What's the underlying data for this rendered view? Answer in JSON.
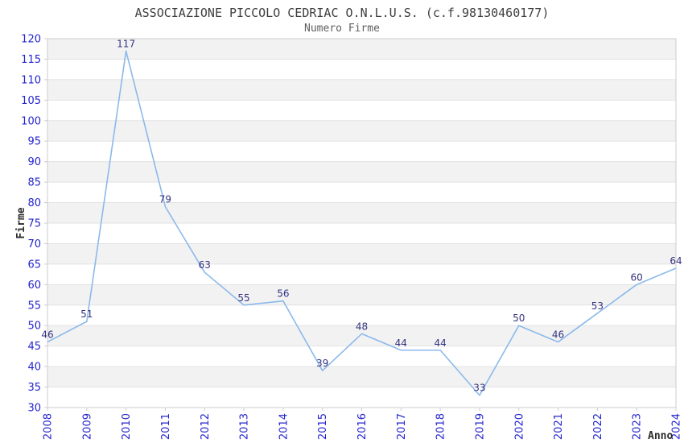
{
  "chart_data": {
    "type": "line",
    "title": "ASSOCIAZIONE PICCOLO CEDRIAC O.N.L.U.S. (c.f.98130460177)",
    "subtitle": "Numero Firme",
    "xlabel": "Anno",
    "ylabel": "Firme",
    "categories": [
      "2008",
      "2009",
      "2010",
      "2011",
      "2012",
      "2013",
      "2014",
      "2015",
      "2016",
      "2017",
      "2018",
      "2019",
      "2020",
      "2021",
      "2022",
      "2023",
      "2024"
    ],
    "values": [
      46,
      51,
      117,
      79,
      63,
      55,
      56,
      39,
      48,
      44,
      44,
      33,
      50,
      46,
      53,
      60,
      64
    ],
    "ylim": [
      30,
      120
    ],
    "ytick_step": 5,
    "grid": "horizontal gridlines every 5 with alternating gray/white bands",
    "legend": "none",
    "point_labels": "value shown above each data point",
    "x_tick_rotation": -90,
    "colors": {
      "line": "#8CB9EB",
      "tick_label": "#2424CF",
      "point_label": "#333380",
      "band": "#F2F2F2",
      "gridline": "#E2E2E2",
      "border": "#CCCCCC",
      "title": "#3F3F3F",
      "subtitle": "#5F5F5F",
      "axis_label": "#2B2B2B",
      "background": "#FFFFFF"
    }
  }
}
